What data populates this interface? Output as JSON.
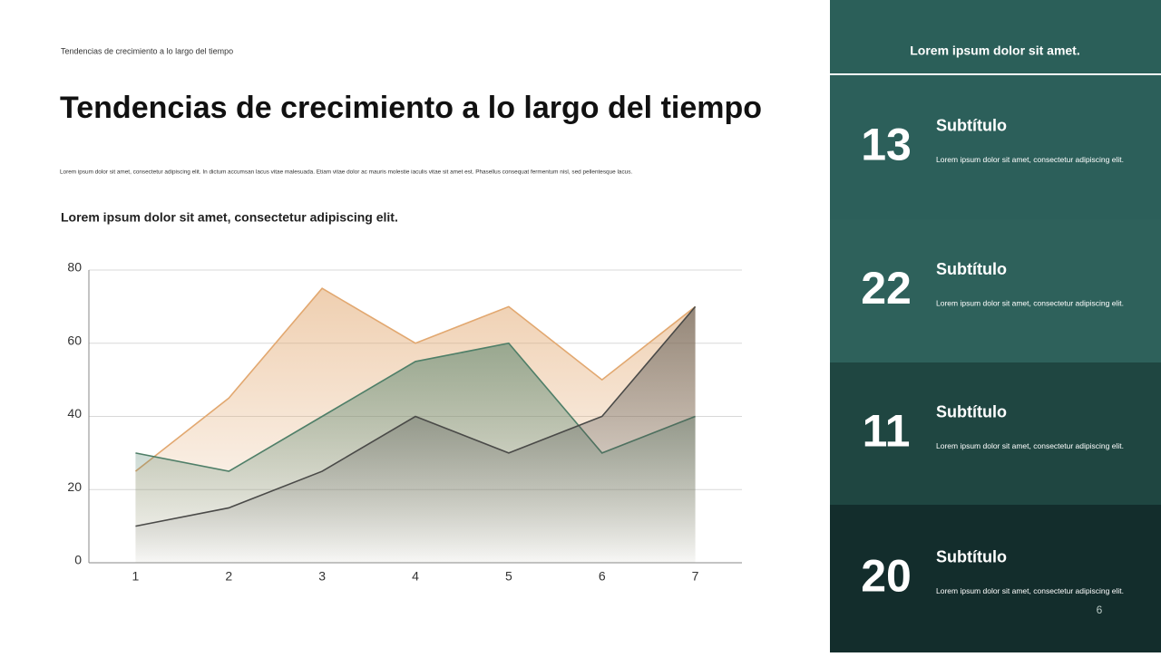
{
  "header": {
    "kicker": "Tendencias de crecimiento a lo largo del tiempo",
    "title": "Tendencias de crecimiento a lo largo del tiempo",
    "paragraph": "Lorem ipsum dolor sit amet, consectetur adipiscing elit. In dictum accumsan lacus vitae malesuada. Etiam vitae dolor ac mauris molestie iaculis vitae sit amet est. Phasellus consequat fermentum nisl, sed pellentesque lacus."
  },
  "chart_data": {
    "type": "area",
    "title": "Lorem ipsum dolor sit amet, consectetur adipiscing elit.",
    "x": [
      1,
      2,
      3,
      4,
      5,
      6,
      7
    ],
    "xlim": [
      0.5,
      7.5
    ],
    "xticks": [
      1,
      2,
      3,
      4,
      5,
      6,
      7
    ],
    "ylim": [
      0,
      80
    ],
    "yticks": [
      0,
      20,
      40,
      60,
      80
    ],
    "grid": true,
    "series": [
      {
        "color": "#e2a870",
        "values": [
          25,
          45,
          75,
          60,
          70,
          50,
          70
        ]
      },
      {
        "color": "#4f7f68",
        "values": [
          30,
          25,
          40,
          55,
          60,
          30,
          40
        ]
      },
      {
        "color": "#4a4a48",
        "values": [
          10,
          15,
          25,
          40,
          30,
          40,
          70
        ]
      }
    ]
  },
  "panel": {
    "heading": "Lorem ipsum dolor sit amet.",
    "items": [
      {
        "number": "13",
        "title": "Subtítulo",
        "text": "Lorem ipsum dolor sit amet, consectetur adipiscing elit."
      },
      {
        "number": "22",
        "title": "Subtítulo",
        "text": "Lorem ipsum dolor sit amet, consectetur adipiscing elit."
      },
      {
        "number": "11",
        "title": "Subtítulo",
        "text": "Lorem ipsum dolor sit amet, consectetur adipiscing elit."
      },
      {
        "number": "20",
        "title": "Subtítulo",
        "text": "Lorem ipsum dolor sit amet, consectetur adipiscing elit."
      }
    ],
    "page": "6"
  }
}
